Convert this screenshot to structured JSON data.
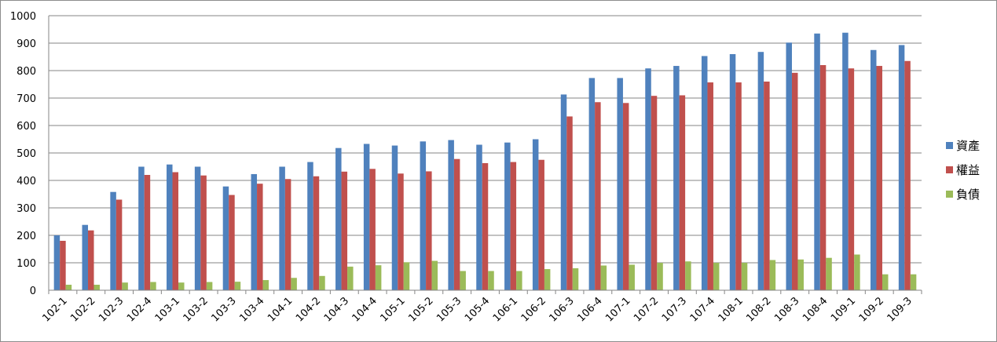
{
  "chart_data": {
    "type": "bar",
    "title": "",
    "xlabel": "",
    "ylabel": "",
    "ylim": [
      0,
      1000
    ],
    "yticks": [
      "0",
      "100",
      "200",
      "300",
      "400",
      "500",
      "600",
      "700",
      "800",
      "900",
      "1000"
    ],
    "grid": true,
    "legend_position": "right",
    "categories": [
      "102-1",
      "102-2",
      "102-3",
      "102-4",
      "103-1",
      "103-2",
      "103-3",
      "103-4",
      "104-1",
      "104-2",
      "104-3",
      "104-4",
      "105-1",
      "105-2",
      "105-3",
      "105-4",
      "106-1",
      "106-2",
      "106-3",
      "106-4",
      "107-1",
      "107-2",
      "107-3",
      "107-4",
      "108-1",
      "108-2",
      "108-3",
      "108-4",
      "109-1",
      "109-2",
      "109-3"
    ],
    "series": [
      {
        "name": "資產",
        "color": "#4f81bd",
        "values": [
          200,
          238,
          358,
          450,
          458,
          450,
          378,
          423,
          450,
          467,
          518,
          533,
          527,
          542,
          547,
          530,
          538,
          550,
          713,
          773,
          773,
          808,
          817,
          853,
          860,
          868,
          902,
          935,
          938,
          875,
          893
        ]
      },
      {
        "name": "權益",
        "color": "#c0504d",
        "values": [
          180,
          218,
          330,
          420,
          430,
          418,
          347,
          388,
          405,
          415,
          432,
          442,
          425,
          433,
          478,
          463,
          467,
          475,
          633,
          685,
          682,
          708,
          710,
          757,
          757,
          760,
          792,
          820,
          808,
          817,
          835
        ]
      },
      {
        "name": "負債",
        "color": "#9bbb59",
        "values": [
          20,
          20,
          28,
          30,
          28,
          30,
          31,
          37,
          45,
          52,
          86,
          91,
          102,
          107,
          70,
          70,
          70,
          77,
          80,
          90,
          93,
          100,
          105,
          100,
          100,
          110,
          112,
          118,
          130,
          58,
          58
        ]
      }
    ]
  }
}
